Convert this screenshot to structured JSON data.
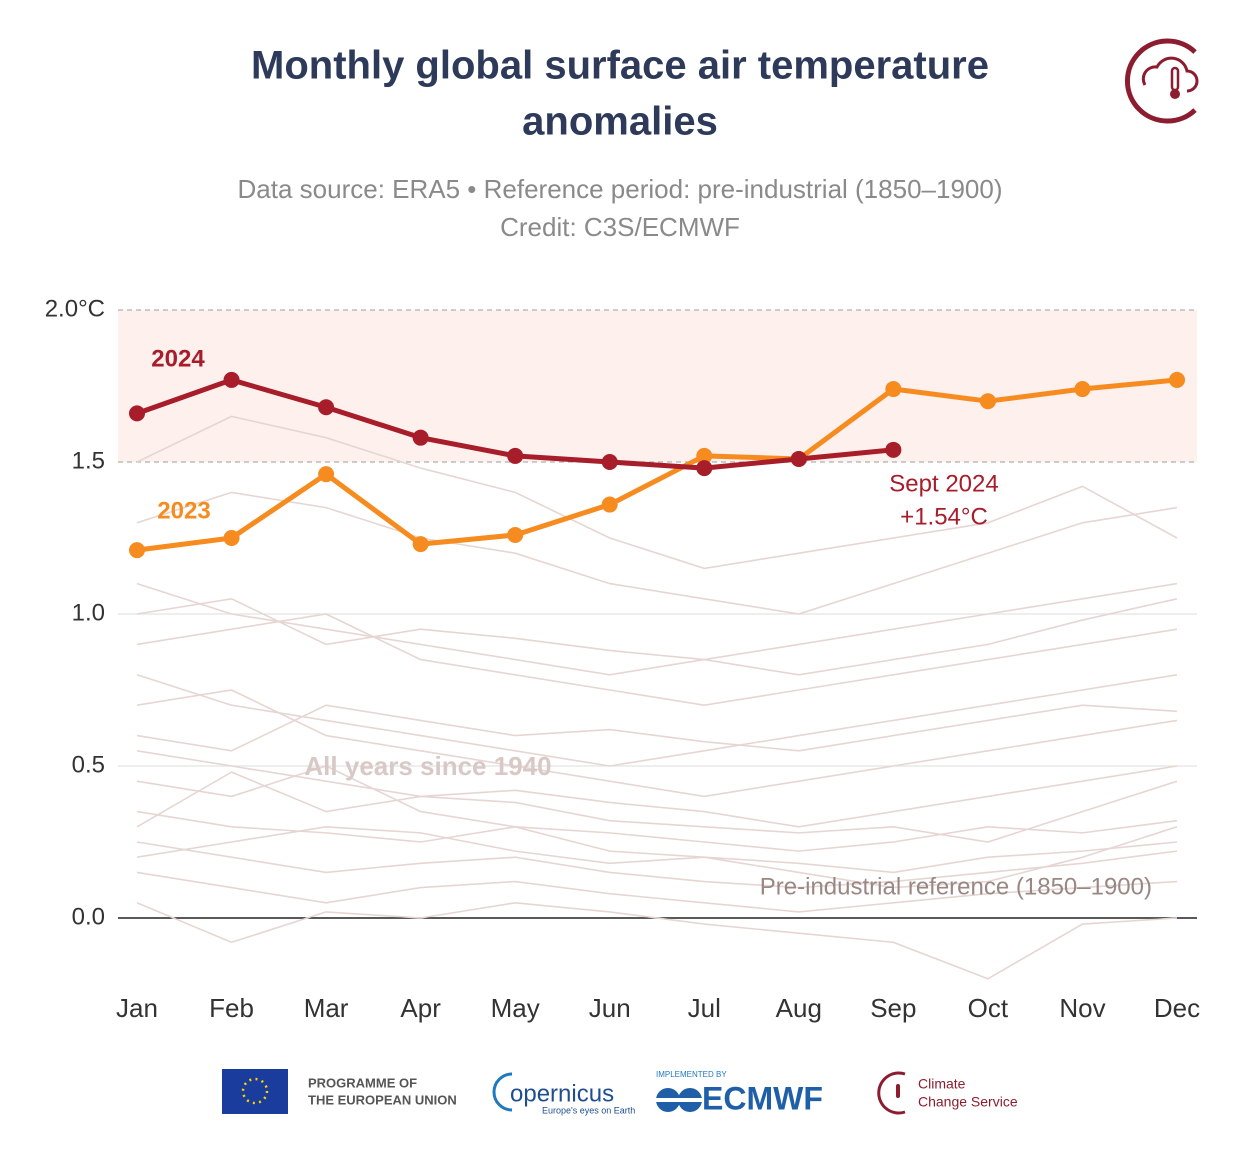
{
  "chart_data": {
    "type": "line",
    "title": [
      "Monthly global surface air temperature",
      "anomalies"
    ],
    "subtitle": [
      "Data source: ERA5 • Reference period: pre-industrial (1850–1900)",
      "Credit: C3S/ECMWF"
    ],
    "categories": [
      "Jan",
      "Feb",
      "Mar",
      "Apr",
      "May",
      "Jun",
      "Jul",
      "Aug",
      "Sep",
      "Oct",
      "Nov",
      "Dec"
    ],
    "series": [
      {
        "name": "2024",
        "color": "#a71d2a",
        "values": [
          1.66,
          1.77,
          1.68,
          1.58,
          1.52,
          1.5,
          1.48,
          1.51,
          1.54,
          null,
          null,
          null
        ]
      },
      {
        "name": "2023",
        "color": "#f68b1f",
        "values": [
          1.21,
          1.25,
          1.46,
          1.23,
          1.26,
          1.36,
          1.52,
          1.51,
          1.74,
          1.7,
          1.74,
          1.77
        ]
      }
    ],
    "background_color": "#e6d6d3",
    "background_series": [
      {
        "values": [
          1.1,
          1.0,
          0.95,
          0.9,
          0.85,
          0.8,
          0.85,
          0.9,
          0.95,
          1.0,
          1.05,
          1.1
        ]
      },
      {
        "values": [
          0.9,
          0.95,
          1.0,
          0.85,
          0.8,
          0.75,
          0.7,
          0.75,
          0.8,
          0.85,
          0.9,
          0.95
        ]
      },
      {
        "values": [
          0.8,
          0.7,
          0.65,
          0.6,
          0.55,
          0.5,
          0.55,
          0.6,
          0.65,
          0.7,
          0.75,
          0.8
        ]
      },
      {
        "values": [
          0.7,
          0.75,
          0.6,
          0.55,
          0.5,
          0.45,
          0.4,
          0.45,
          0.5,
          0.55,
          0.6,
          0.65
        ]
      },
      {
        "values": [
          0.55,
          0.5,
          0.45,
          0.4,
          0.42,
          0.38,
          0.35,
          0.3,
          0.35,
          0.4,
          0.45,
          0.5
        ]
      },
      {
        "values": [
          0.45,
          0.4,
          0.5,
          0.35,
          0.3,
          0.28,
          0.25,
          0.22,
          0.25,
          0.3,
          0.28,
          0.32
        ]
      },
      {
        "values": [
          0.35,
          0.3,
          0.28,
          0.25,
          0.3,
          0.22,
          0.2,
          0.18,
          0.15,
          0.2,
          0.22,
          0.25
        ]
      },
      {
        "values": [
          0.25,
          0.2,
          0.15,
          0.18,
          0.2,
          0.15,
          0.12,
          0.1,
          0.12,
          0.15,
          0.18,
          0.22
        ]
      },
      {
        "values": [
          0.15,
          0.1,
          0.05,
          0.1,
          0.12,
          0.08,
          0.05,
          0.02,
          0.05,
          0.08,
          0.1,
          0.12
        ]
      },
      {
        "values": [
          0.05,
          -0.08,
          0.02,
          0.0,
          0.05,
          0.02,
          -0.02,
          -0.05,
          -0.08,
          -0.2,
          -0.02,
          0.0
        ]
      },
      {
        "values": [
          1.3,
          1.4,
          1.35,
          1.25,
          1.2,
          1.1,
          1.05,
          1.0,
          1.1,
          1.2,
          1.3,
          1.35
        ]
      },
      {
        "values": [
          1.5,
          1.65,
          1.58,
          1.48,
          1.4,
          1.25,
          1.15,
          1.2,
          1.25,
          1.3,
          1.42,
          1.25
        ]
      },
      {
        "values": [
          0.6,
          0.55,
          0.7,
          0.65,
          0.6,
          0.62,
          0.58,
          0.55,
          0.6,
          0.65,
          0.7,
          0.68
        ]
      },
      {
        "values": [
          0.3,
          0.48,
          0.35,
          0.4,
          0.38,
          0.32,
          0.3,
          0.28,
          0.3,
          0.25,
          0.35,
          0.45
        ]
      },
      {
        "values": [
          1.0,
          1.05,
          0.9,
          0.95,
          0.92,
          0.88,
          0.85,
          0.8,
          0.85,
          0.9,
          0.98,
          1.05
        ]
      },
      {
        "values": [
          0.2,
          0.25,
          0.3,
          0.28,
          0.22,
          0.18,
          0.2,
          0.15,
          0.1,
          0.12,
          0.2,
          0.3
        ]
      }
    ],
    "ylim": [
      -0.22,
      2.0
    ],
    "yticks": [
      {
        "value": 0,
        "label": "0.0"
      },
      0.5,
      {
        "value": 1,
        "label": "1.0"
      },
      1.5,
      {
        "value": 2,
        "label": "2.0°C"
      }
    ],
    "band": [
      1.5,
      2.0
    ],
    "annotations": {
      "sept": [
        "Sept 2024",
        "+1.54°C"
      ],
      "all_years": "All years since 1940",
      "reference": "Pre-industrial reference (1850–1900)"
    }
  },
  "footer": {
    "eu": [
      "PROGRAMME OF",
      "THE EUROPEAN UNION"
    ],
    "copernicus": "opernicus",
    "copernicus_tagline": "Europe's eyes on Earth",
    "implemented": "IMPLEMENTED BY",
    "ecmwf": "ECMWF",
    "c3s": [
      "Climate",
      "Change Service"
    ]
  }
}
